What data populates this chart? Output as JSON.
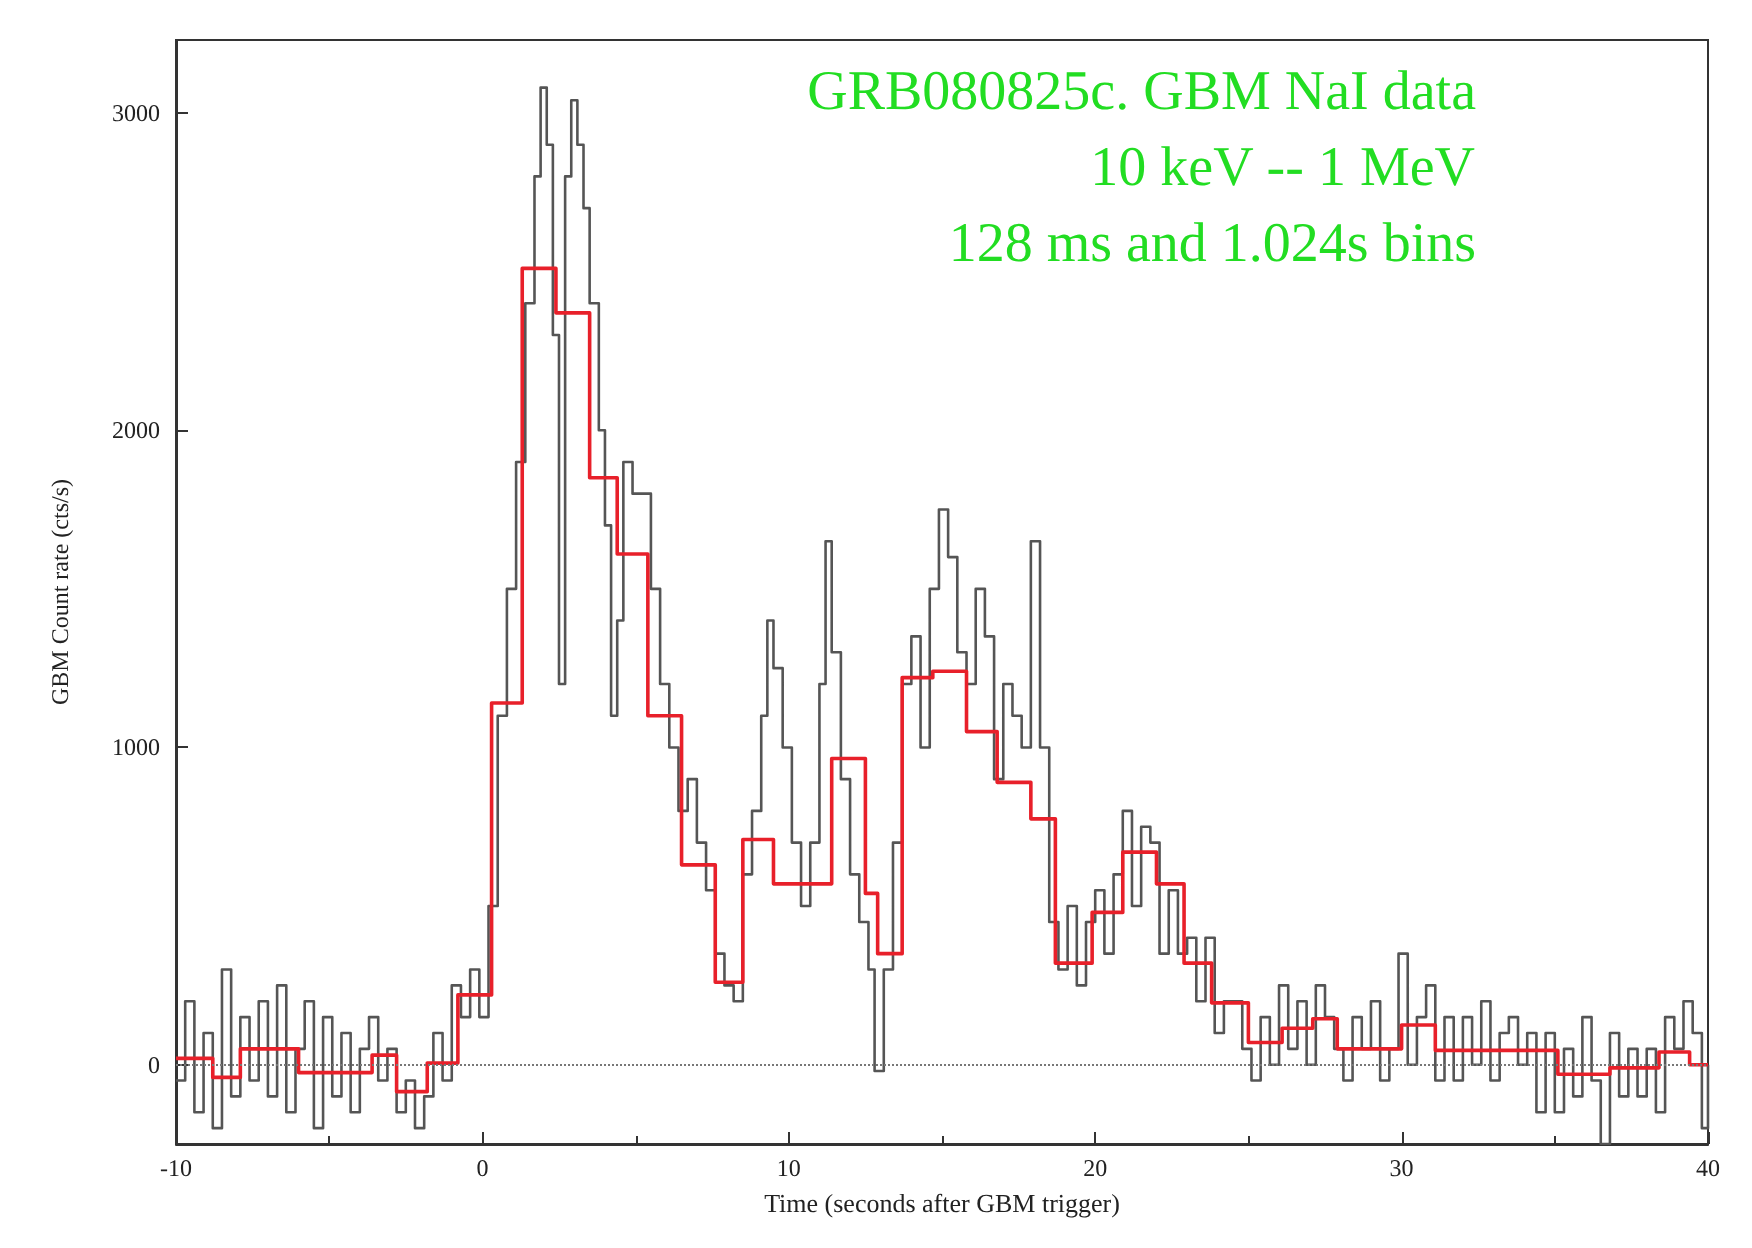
{
  "chart_data": {
    "type": "step",
    "xlabel": "Time (seconds after GBM trigger)",
    "ylabel": "GBM Count rate (cts/s)",
    "annotations": [
      "GRB080825c. GBM NaI data",
      "10 keV -- 1 MeV",
      "128 ms and 1.024s bins"
    ],
    "xlim": [
      -10,
      40
    ],
    "xticks": [
      -10,
      0,
      10,
      20,
      30,
      40
    ],
    "ylim": [
      -250,
      3230
    ],
    "yticks": [
      0,
      1000,
      2000,
      3000
    ],
    "grid": false,
    "line_style": "solid",
    "marker": "none",
    "ref_lines": [
      {
        "axis": "y",
        "value": 0,
        "label": null,
        "color": "#777777",
        "line_style": "dotted"
      }
    ],
    "series": [
      {
        "color": "#555555",
        "x": [
          -10,
          -9.7,
          -9.4,
          -9.1,
          -8.8,
          -8.5,
          -8.2,
          -7.9,
          -7.6,
          -7.3,
          -7.0,
          -6.7,
          -6.4,
          -6.1,
          -5.8,
          -5.5,
          -5.2,
          -4.9,
          -4.6,
          -4.3,
          -4.0,
          -3.7,
          -3.4,
          -3.1,
          -2.8,
          -2.5,
          -2.2,
          -1.9,
          -1.6,
          -1.3,
          -1.0,
          -0.7,
          -0.4,
          -0.1,
          0.2,
          0.5,
          0.8,
          1.1,
          1.4,
          1.7,
          1.9,
          2.1,
          2.3,
          2.5,
          2.7,
          2.9,
          3.1,
          3.3,
          3.5,
          3.8,
          4.0,
          4.2,
          4.4,
          4.6,
          4.9,
          5.2,
          5.5,
          5.8,
          6.1,
          6.4,
          6.7,
          7.0,
          7.3,
          7.6,
          7.9,
          8.2,
          8.5,
          8.8,
          9.1,
          9.3,
          9.5,
          9.8,
          10.1,
          10.4,
          10.7,
          11.0,
          11.2,
          11.4,
          11.7,
          12.0,
          12.3,
          12.6,
          12.8,
          13.1,
          13.4,
          13.7,
          14.0,
          14.3,
          14.6,
          14.9,
          15.2,
          15.5,
          15.8,
          16.1,
          16.4,
          16.7,
          17.0,
          17.3,
          17.6,
          17.9,
          18.2,
          18.5,
          18.8,
          19.1,
          19.4,
          19.7,
          20.0,
          20.3,
          20.6,
          20.9,
          21.2,
          21.5,
          21.8,
          22.1,
          22.4,
          22.7,
          23.0,
          23.3,
          23.6,
          23.9,
          24.2,
          24.5,
          24.8,
          25.1,
          25.4,
          25.7,
          26.0,
          26.3,
          26.6,
          26.9,
          27.2,
          27.5,
          27.8,
          28.1,
          28.4,
          28.7,
          29.0,
          29.3,
          29.6,
          29.9,
          30.2,
          30.5,
          30.8,
          31.1,
          31.4,
          31.7,
          32.0,
          32.3,
          32.6,
          32.9,
          33.2,
          33.5,
          33.8,
          34.1,
          34.4,
          34.7,
          35.0,
          35.3,
          35.6,
          35.9,
          36.2,
          36.5,
          36.8,
          37.1,
          37.4,
          37.7,
          38.0,
          38.3,
          38.6,
          38.9,
          39.2,
          39.5,
          39.8,
          40
        ],
        "values": [
          -50,
          200,
          -150,
          100,
          -200,
          300,
          -100,
          150,
          -50,
          200,
          -100,
          250,
          -150,
          50,
          200,
          -200,
          150,
          -100,
          100,
          -150,
          50,
          150,
          -50,
          50,
          -150,
          -50,
          -200,
          -100,
          100,
          -50,
          250,
          150,
          300,
          150,
          500,
          1100,
          1500,
          1900,
          2400,
          2800,
          3080,
          2900,
          2300,
          1200,
          2800,
          3040,
          2900,
          2700,
          2400,
          2000,
          1700,
          1100,
          1400,
          1900,
          1800,
          1800,
          1500,
          1200,
          1000,
          800,
          900,
          700,
          550,
          350,
          250,
          200,
          600,
          800,
          1100,
          1400,
          1250,
          1000,
          700,
          500,
          700,
          1200,
          1650,
          1300,
          900,
          600,
          450,
          300,
          -20,
          300,
          700,
          1200,
          1350,
          1000,
          1500,
          1750,
          1600,
          1300,
          1200,
          1500,
          1350,
          900,
          1200,
          1100,
          1000,
          1650,
          1000,
          450,
          300,
          500,
          250,
          450,
          550,
          350,
          600,
          800,
          500,
          750,
          700,
          350,
          550,
          350,
          400,
          200,
          400,
          100,
          200,
          200,
          50,
          -50,
          150,
          0,
          250,
          50,
          200,
          0,
          250,
          150,
          50,
          -50,
          150,
          50,
          200,
          -50,
          50,
          350,
          0,
          150,
          250,
          -50,
          150,
          -50,
          150,
          0,
          200,
          -50,
          100,
          150,
          0,
          100,
          -150,
          100,
          -150,
          50,
          -100,
          150,
          -50,
          -250,
          100,
          -100,
          50,
          -100,
          50,
          -150,
          150,
          50,
          200,
          100,
          -200,
          0
        ]
      },
      {
        "color": "#e8202a",
        "x": [
          -10,
          -8.8,
          -7.9,
          -6.0,
          -3.6,
          -2.8,
          -1.8,
          -0.8,
          0.3,
          1.3,
          2.4,
          3.5,
          4.4,
          5.4,
          6.5,
          7.6,
          8.5,
          9.5,
          11.4,
          12.5,
          12.9,
          13.7,
          14.7,
          15.8,
          16.8,
          17.9,
          18.7,
          19.9,
          20.9,
          22.0,
          22.9,
          23.8,
          25.0,
          26.1,
          27.1,
          27.9,
          30.0,
          31.1,
          35.1,
          36.8,
          38.4,
          39.4,
          40
        ],
        "values": [
          20,
          -40,
          50,
          -25,
          30,
          -85,
          5,
          220,
          1140,
          2510,
          2370,
          1850,
          1610,
          1100,
          630,
          260,
          710,
          570,
          965,
          540,
          350,
          1220,
          1240,
          1050,
          890,
          775,
          320,
          480,
          670,
          570,
          320,
          195,
          70,
          115,
          145,
          50,
          125,
          45,
          -30,
          -10,
          40,
          0,
          0
        ]
      }
    ]
  }
}
